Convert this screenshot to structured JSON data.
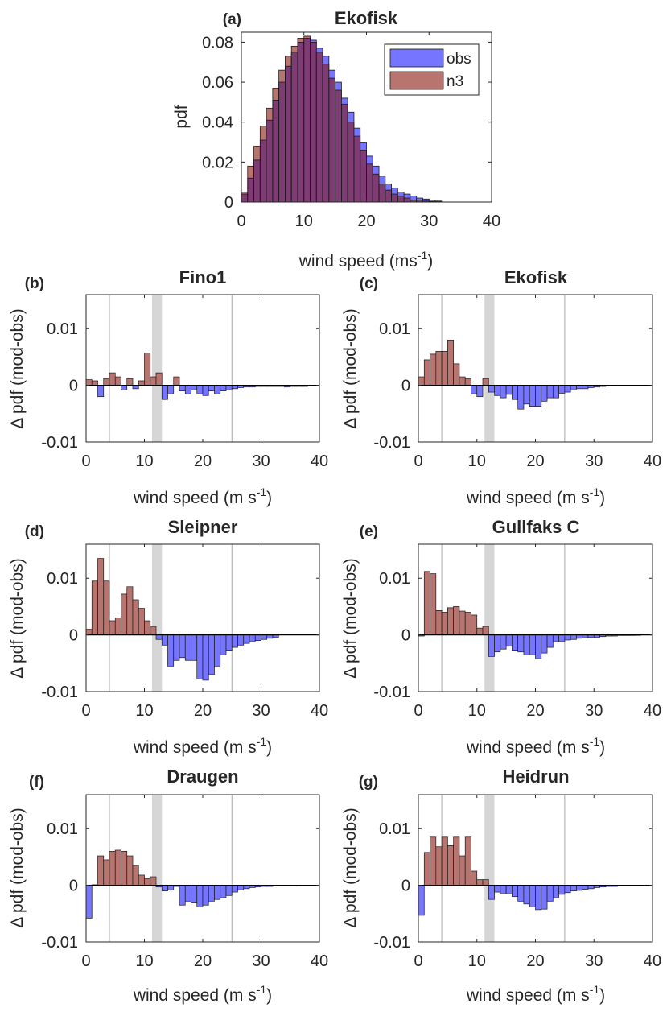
{
  "colors": {
    "obs": "#7575ff",
    "n3": "#b87570",
    "overlap": "#7f3c74",
    "edge": "#1a1a1a",
    "guide": "#a8a8a8",
    "band": "#d6d6d6"
  },
  "chart_data": [
    {
      "type": "bar",
      "panel": "(a)",
      "title": "Ekofisk",
      "xlabel": "wind speed (ms",
      "xlabel_sup": "-1",
      "xlabel_end": ")",
      "ylabel": "pdf",
      "xlim": [
        0,
        40
      ],
      "ylim": [
        0,
        0.085
      ],
      "xticks": [
        0,
        10,
        20,
        30,
        40
      ],
      "xtick_labels": [
        "0",
        "10",
        "20",
        "30",
        "40"
      ],
      "yticks": [
        0,
        0.02,
        0.04,
        0.06,
        0.08
      ],
      "ytick_labels": [
        "0",
        "0.02",
        "0.04",
        "0.06",
        "0.08"
      ],
      "legend": [
        "obs",
        "n3"
      ],
      "legend_position": "top-right",
      "bin_width": 1,
      "x": [
        0,
        1,
        2,
        3,
        4,
        5,
        6,
        7,
        8,
        9,
        10,
        11,
        12,
        13,
        14,
        15,
        16,
        17,
        18,
        19,
        20,
        21,
        22,
        23,
        24,
        25,
        26,
        27,
        28,
        29,
        30,
        31
      ],
      "series": [
        {
          "name": "obs",
          "values": [
            0.004,
            0.012,
            0.021,
            0.031,
            0.041,
            0.051,
            0.06,
            0.068,
            0.075,
            0.08,
            0.082,
            0.081,
            0.077,
            0.073,
            0.066,
            0.06,
            0.052,
            0.045,
            0.037,
            0.03,
            0.023,
            0.018,
            0.013,
            0.009,
            0.007,
            0.005,
            0.004,
            0.003,
            0.002,
            0.0015,
            0.001,
            0.0005
          ]
        },
        {
          "name": "n3",
          "values": [
            0.005,
            0.018,
            0.028,
            0.038,
            0.047,
            0.057,
            0.066,
            0.073,
            0.078,
            0.082,
            0.083,
            0.08,
            0.075,
            0.069,
            0.062,
            0.056,
            0.049,
            0.04,
            0.033,
            0.026,
            0.019,
            0.014,
            0.009,
            0.006,
            0.004,
            0.003,
            0.002,
            0.001,
            0.001,
            0.0005,
            0.0003,
            0.0002
          ]
        }
      ]
    },
    {
      "type": "bar",
      "panel": "(b)",
      "title": "Fino1",
      "xlabel": "wind speed (m s",
      "xlabel_sup": "-1",
      "xlabel_end": ")",
      "ylabel": "Δ pdf (mod-obs)",
      "xlim": [
        0,
        40
      ],
      "ylim": [
        -0.01,
        0.016
      ],
      "xticks": [
        0,
        10,
        20,
        30,
        40
      ],
      "xtick_labels": [
        "0",
        "10",
        "20",
        "30",
        "40"
      ],
      "yticks": [
        -0.01,
        0,
        0.01
      ],
      "ytick_labels": [
        "-0.01",
        "0",
        "0.01"
      ],
      "guide_lines": [
        4,
        25
      ],
      "band": [
        11.3,
        13
      ],
      "bin_width": 1,
      "x0": 0,
      "values": [
        0.001,
        0.0008,
        -0.002,
        0.0012,
        0.0022,
        0.0015,
        -0.0008,
        0.0012,
        -0.0006,
        0.0008,
        0.0057,
        0.0015,
        0.0022,
        -0.0025,
        -0.0015,
        0.0015,
        -0.001,
        -0.0015,
        -0.0008,
        -0.0015,
        -0.0018,
        -0.001,
        -0.0015,
        -0.001,
        -0.0008,
        -0.0006,
        -0.0004,
        -0.0003,
        -0.0003,
        -0.0002,
        -0.0002,
        -0.0002,
        -0.0002,
        -0.0002,
        -0.0003,
        -0.0002,
        -0.0002,
        -0.0002,
        -0.0001
      ]
    },
    {
      "type": "bar",
      "panel": "(c)",
      "title": "Ekofisk",
      "xlabel": "wind speed (m s",
      "xlabel_sup": "-1",
      "xlabel_end": ")",
      "ylabel": "Δ pdf (mod-obs)",
      "xlim": [
        0,
        40
      ],
      "ylim": [
        -0.01,
        0.016
      ],
      "xticks": [
        0,
        10,
        20,
        30,
        40
      ],
      "xtick_labels": [
        "0",
        "10",
        "20",
        "30",
        "40"
      ],
      "yticks": [
        -0.01,
        0,
        0.01
      ],
      "ytick_labels": [
        "-0.01",
        "0",
        "0.01"
      ],
      "guide_lines": [
        4,
        25
      ],
      "band": [
        11.3,
        13
      ],
      "bin_width": 1,
      "x0": 0,
      "values": [
        0.0015,
        0.0045,
        0.0055,
        0.006,
        0.006,
        0.008,
        0.0038,
        0.0015,
        0.0012,
        -0.0015,
        -0.002,
        0.0012,
        -0.0012,
        -0.0018,
        -0.0022,
        -0.0016,
        -0.0025,
        -0.0042,
        -0.0033,
        -0.0037,
        -0.0037,
        -0.0028,
        -0.0022,
        -0.0022,
        -0.0014,
        -0.0012,
        -0.0008,
        -0.0006,
        -0.0006,
        -0.0004,
        -0.0003,
        -0.0002,
        -0.0001,
        -0.0001
      ]
    },
    {
      "type": "bar",
      "panel": "(d)",
      "title": "Sleipner",
      "xlabel": "wind speed (m s",
      "xlabel_sup": "-1",
      "xlabel_end": ")",
      "ylabel": "Δ pdf (mod-obs)",
      "xlim": [
        0,
        40
      ],
      "ylim": [
        -0.01,
        0.016
      ],
      "xticks": [
        0,
        10,
        20,
        30,
        40
      ],
      "xtick_labels": [
        "0",
        "10",
        "20",
        "30",
        "40"
      ],
      "yticks": [
        -0.01,
        0,
        0.01
      ],
      "ytick_labels": [
        "-0.01",
        "0",
        "0.01"
      ],
      "guide_lines": [
        4,
        25
      ],
      "band": [
        11.3,
        13
      ],
      "bin_width": 1,
      "x0": 0,
      "values": [
        0.001,
        0.0095,
        0.0135,
        0.0095,
        0.0025,
        0.003,
        0.0072,
        0.0085,
        0.0062,
        0.0047,
        0.0025,
        0.0015,
        -0.0008,
        -0.0018,
        -0.0055,
        -0.0045,
        -0.004,
        -0.0045,
        -0.0045,
        -0.0078,
        -0.008,
        -0.007,
        -0.0055,
        -0.0035,
        -0.0027,
        -0.0022,
        -0.0018,
        -0.0015,
        -0.0012,
        -0.001,
        -0.0008,
        -0.0006,
        -0.0004
      ]
    },
    {
      "type": "bar",
      "panel": "(e)",
      "title": "Gullfaks C",
      "xlabel": "wind speed (m s",
      "xlabel_sup": "-1",
      "xlabel_end": ")",
      "ylabel": "Δ pdf (mod-obs)",
      "xlim": [
        0,
        40
      ],
      "ylim": [
        -0.01,
        0.016
      ],
      "xticks": [
        0,
        10,
        20,
        30,
        40
      ],
      "xtick_labels": [
        "0",
        "10",
        "20",
        "30",
        "40"
      ],
      "yticks": [
        -0.01,
        0,
        0.01
      ],
      "ytick_labels": [
        "-0.01",
        "0",
        "0.01"
      ],
      "guide_lines": [
        4,
        25
      ],
      "band": [
        11.3,
        13
      ],
      "bin_width": 1,
      "x0": 0,
      "values": [
        -0.0002,
        0.0112,
        0.0108,
        0.0043,
        0.004,
        0.0048,
        0.005,
        0.0042,
        0.004,
        0.0035,
        0.0012,
        0.0015,
        -0.0038,
        -0.003,
        -0.0025,
        -0.002,
        -0.0027,
        -0.003,
        -0.0035,
        -0.0035,
        -0.0042,
        -0.0032,
        -0.0022,
        -0.0012,
        -0.0012,
        -0.0009,
        -0.0008,
        -0.0006,
        -0.0005,
        -0.0004,
        -0.0004,
        -0.0003,
        -0.0002,
        -0.0002,
        -0.0001,
        -0.0001,
        -0.0001,
        0
      ]
    },
    {
      "type": "bar",
      "panel": "(f)",
      "title": "Draugen",
      "xlabel": "wind speed (m s",
      "xlabel_sup": "-1",
      "xlabel_end": ")",
      "ylabel": "Δ pdf (mod-obs)",
      "xlim": [
        0,
        40
      ],
      "ylim": [
        -0.01,
        0.016
      ],
      "xticks": [
        0,
        10,
        20,
        30,
        40
      ],
      "xtick_labels": [
        "0",
        "10",
        "20",
        "30",
        "40"
      ],
      "yticks": [
        -0.01,
        0,
        0.01
      ],
      "ytick_labels": [
        "-0.01",
        "0",
        "0.01"
      ],
      "guide_lines": [
        4,
        25
      ],
      "band": [
        11.3,
        13
      ],
      "bin_width": 1,
      "x0": 0,
      "values": [
        -0.0058,
        0.0001,
        0.0052,
        0.0045,
        0.006,
        0.0062,
        0.006,
        0.0052,
        0.0035,
        0.0018,
        0.0012,
        0.0015,
        -0.0003,
        -0.001,
        -0.0008,
        -0.0002,
        -0.0035,
        -0.0028,
        -0.003,
        -0.0038,
        -0.0035,
        -0.0028,
        -0.0025,
        -0.0022,
        -0.0018,
        -0.0012,
        -0.0008,
        -0.0006,
        -0.0004,
        -0.0003,
        -0.0002,
        -0.0002,
        -0.0001,
        -0.0001,
        -0.0001,
        -0.0001
      ]
    },
    {
      "type": "bar",
      "panel": "(g)",
      "title": "Heidrun",
      "xlabel": "wind speed (m s",
      "xlabel_sup": "-1",
      "xlabel_end": ")",
      "ylabel": "Δ pdf (mod-obs)",
      "xlim": [
        0,
        40
      ],
      "ylim": [
        -0.01,
        0.016
      ],
      "xticks": [
        0,
        10,
        20,
        30,
        40
      ],
      "xtick_labels": [
        "0",
        "10",
        "20",
        "30",
        "40"
      ],
      "yticks": [
        -0.01,
        0,
        0.01
      ],
      "ytick_labels": [
        "-0.01",
        "0",
        "0.01"
      ],
      "guide_lines": [
        4,
        25
      ],
      "band": [
        11.3,
        13
      ],
      "bin_width": 1,
      "x0": 0,
      "values": [
        -0.0053,
        0.0058,
        0.0085,
        0.0068,
        0.0085,
        0.007,
        0.0085,
        0.0052,
        0.0085,
        0.0025,
        0.001,
        0.001,
        -0.0025,
        -0.0012,
        -0.0015,
        -0.0015,
        -0.002,
        -0.0028,
        -0.0033,
        -0.0038,
        -0.0043,
        -0.0042,
        -0.0028,
        -0.0022,
        -0.0016,
        -0.0013,
        -0.001,
        -0.0009,
        -0.0007,
        -0.0006,
        -0.0004,
        -0.0003,
        -0.0002,
        -0.0002,
        -0.0001,
        -0.0001,
        -0.0001,
        -0.0001,
        -0.0001
      ]
    }
  ]
}
